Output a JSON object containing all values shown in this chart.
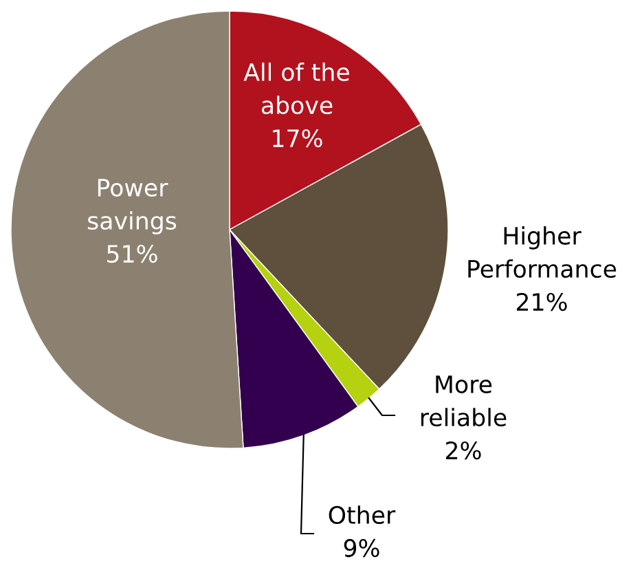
{
  "chart_data": {
    "type": "pie",
    "categories": [
      "All of the above",
      "Higher Performance",
      "More reliable",
      "Other",
      "Power savings"
    ],
    "values": [
      17,
      21,
      2,
      9,
      51
    ],
    "colors": [
      "#b2121e",
      "#5e503c",
      "#b6d10f",
      "#330050",
      "#8c8170"
    ],
    "value_labels": [
      "17%",
      "21%",
      "2%",
      "9%",
      "51%"
    ]
  }
}
